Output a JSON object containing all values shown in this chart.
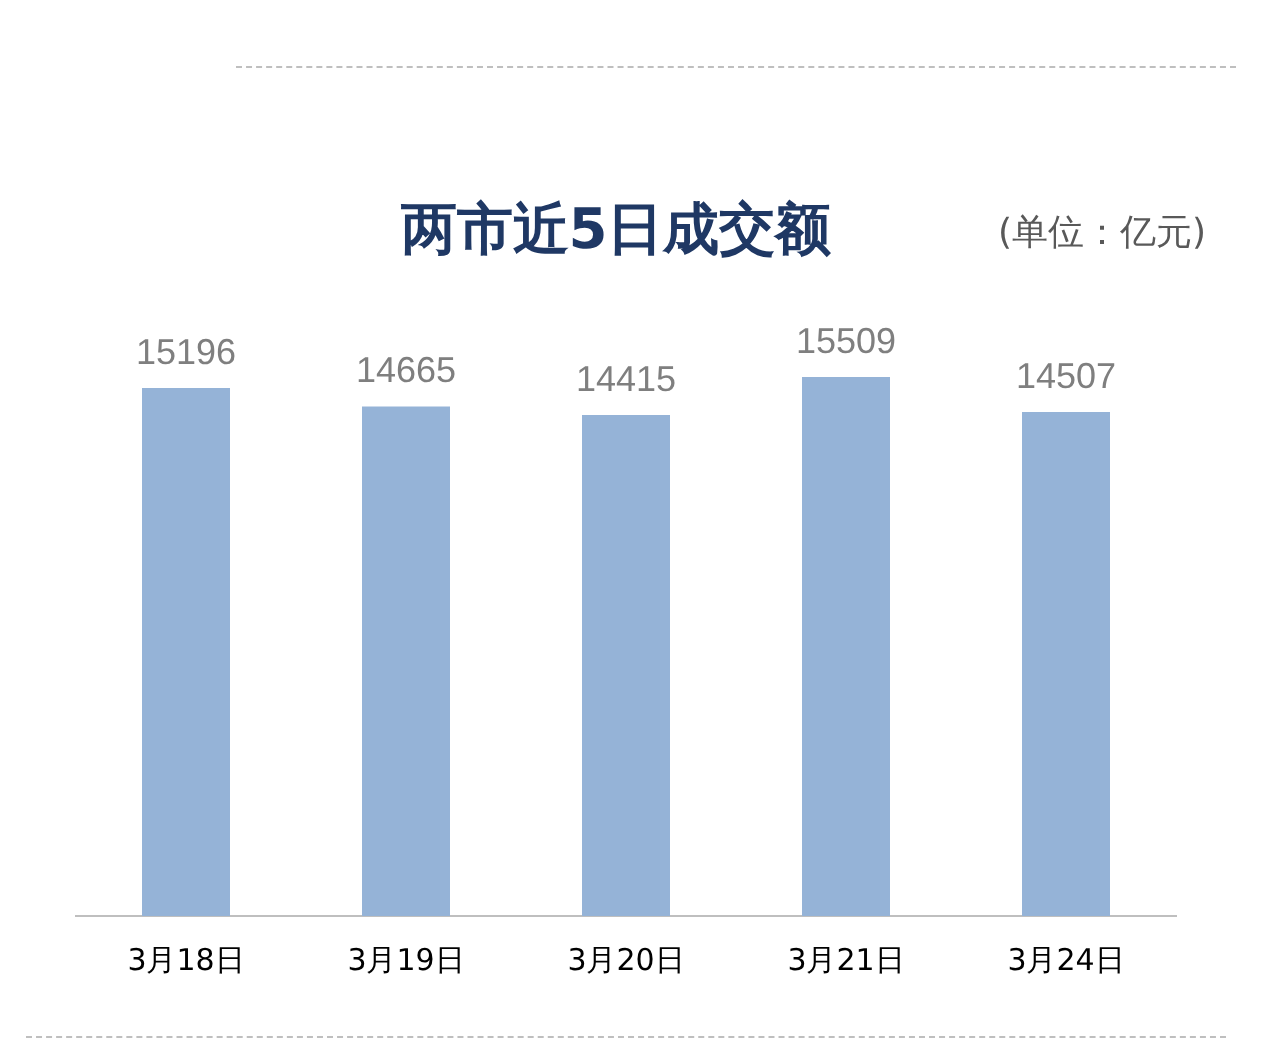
{
  "chart_data": {
    "type": "bar",
    "title": "两市近5日成交额",
    "subtitle": "(单位：亿元)",
    "categories": [
      "3月18日",
      "3月19日",
      "3月20日",
      "3月21日",
      "3月24日"
    ],
    "values": [
      15196,
      14665,
      14415,
      15509,
      14507
    ],
    "color": "#95b3d7",
    "data_labels": true,
    "grid": false,
    "legend": false
  }
}
